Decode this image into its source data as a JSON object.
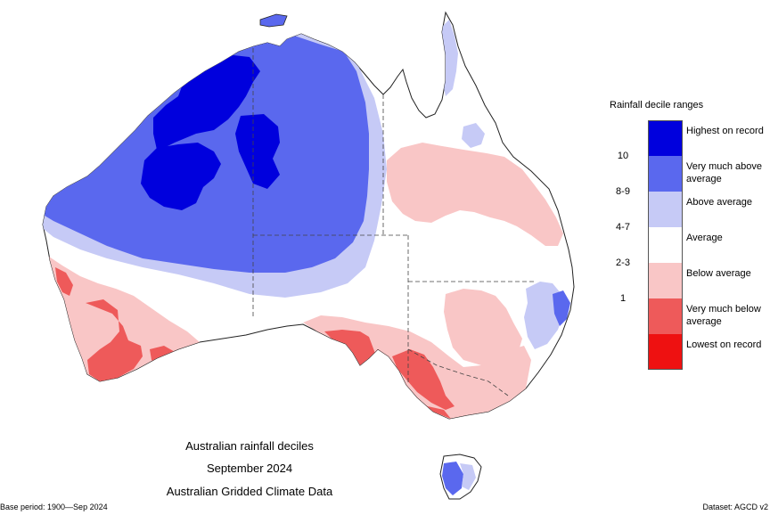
{
  "legend": {
    "title": "Rainfall decile ranges",
    "items": [
      {
        "label": "Highest on record",
        "color": "#0000dd"
      },
      {
        "label": "Very much above average",
        "color": "#5a68ee"
      },
      {
        "label": "Above average",
        "color": "#c6caf6"
      },
      {
        "label": "Average",
        "color": "#ffffff"
      },
      {
        "label": "Below average",
        "color": "#f9c6c6"
      },
      {
        "label": "Very much below average",
        "color": "#ee5a5a"
      },
      {
        "label": "Lowest on record",
        "color": "#ee1111"
      }
    ],
    "ranges": [
      "10",
      "8-9",
      "4-7",
      "2-3",
      "1"
    ]
  },
  "caption": {
    "line1": "Australian rainfall deciles",
    "line2": "September 2024",
    "line3": "Australian Gridded Climate Data"
  },
  "footer": {
    "base_period": "Base period: 1900—Sep 2024",
    "dataset": "Dataset: AGCD v2"
  }
}
